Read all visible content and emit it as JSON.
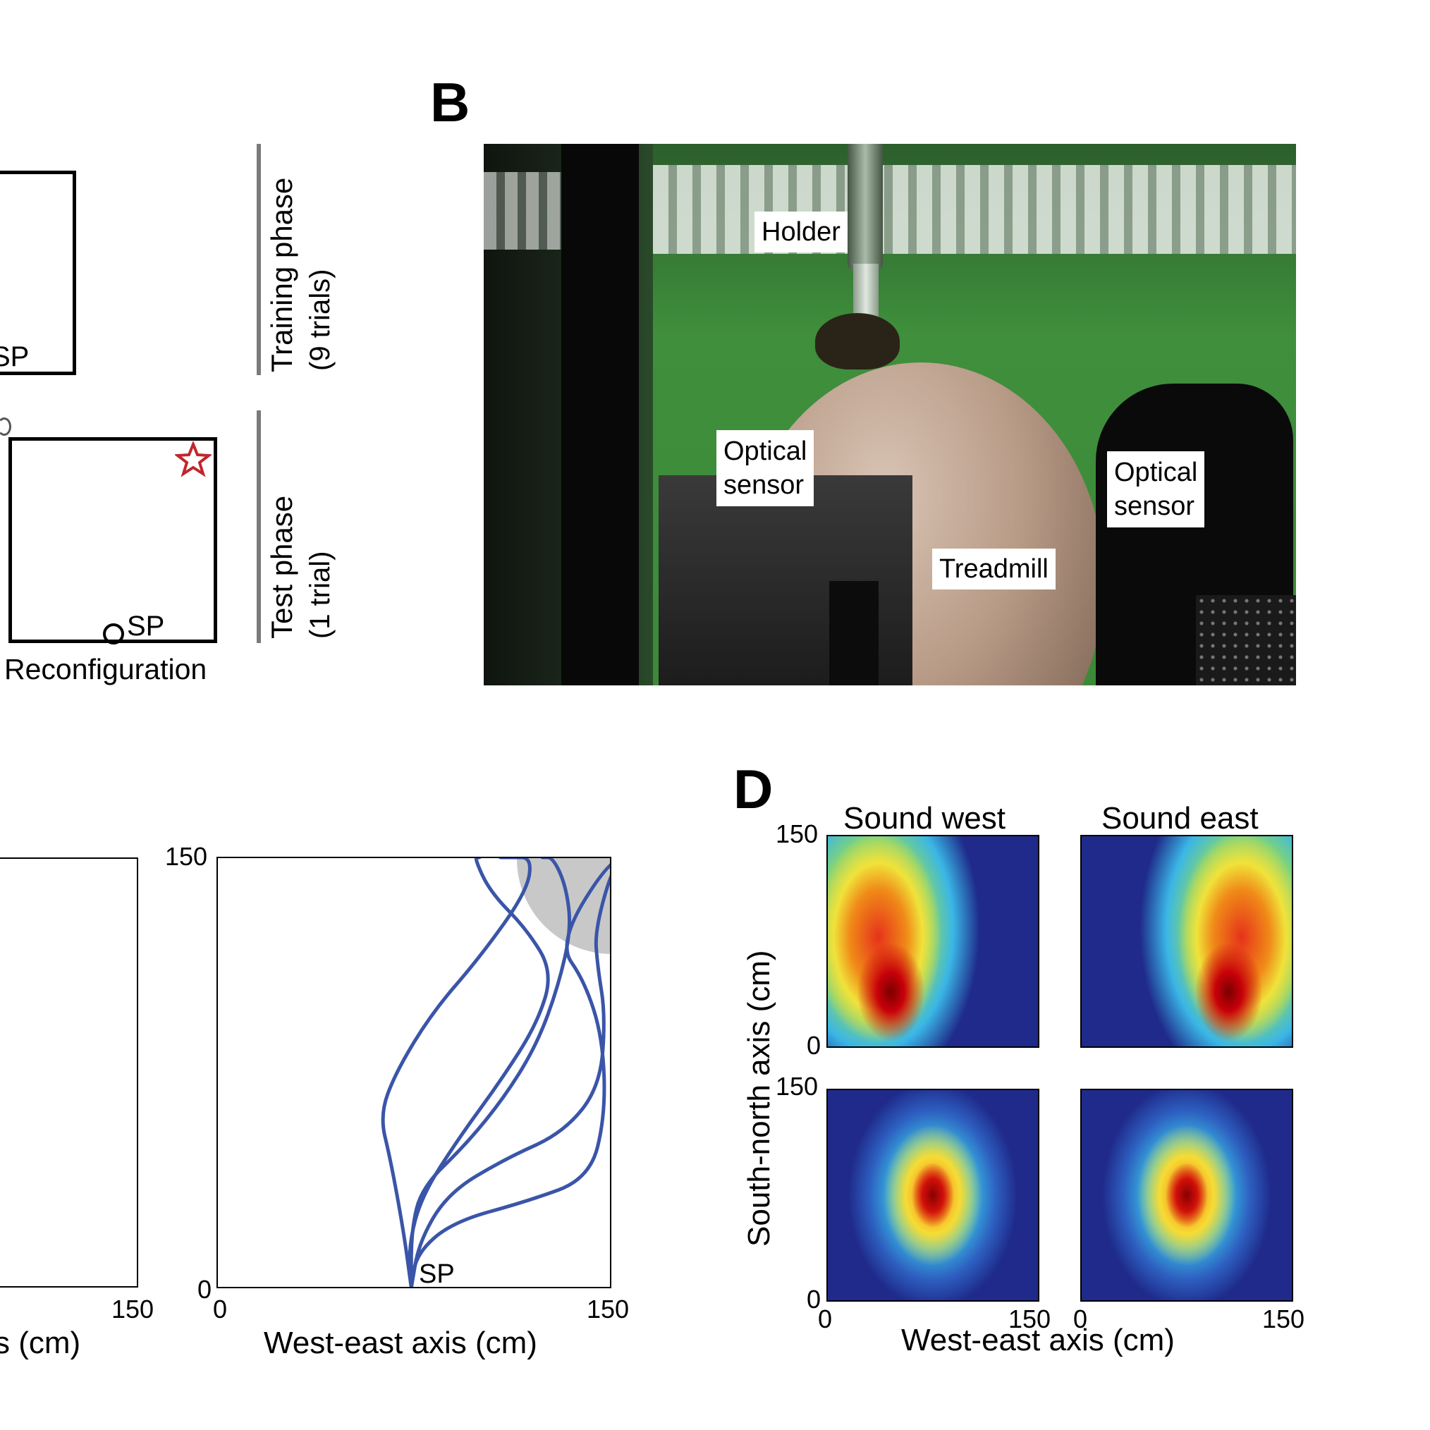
{
  "panelA": {
    "sp_top": "SP",
    "sp_bottom": "SP",
    "reconfiguration": "Reconfiguration",
    "training_phase": "Training phase",
    "training_trials": "(9 trials)",
    "test_phase": "Test phase",
    "test_trials": "(1 trial)"
  },
  "panelB": {
    "letter": "B",
    "holder": "Holder",
    "optical_sensor_left_1": "Optical",
    "optical_sensor_left_2": "sensor",
    "optical_sensor_right_1": "Optical",
    "optical_sensor_right_2": "sensor",
    "treadmill": "Treadmill"
  },
  "panelC": {
    "left_xlabel_fragment": "s (cm)",
    "left_tick_150": "150",
    "right_xlabel": "West-east axis (cm)",
    "tick_150_y": "150",
    "tick_0_y": "0",
    "tick_0_x": "0",
    "tick_150_x": "150",
    "sp": "SP"
  },
  "panelD": {
    "letter": "D",
    "title_west": "Sound west",
    "title_east": "Sound east",
    "ylabel": "South-north axis (cm)",
    "xlabel": "West-east axis (cm)",
    "tick_150_top": "150",
    "tick_0_top": "0",
    "tick_150_bottom": "150",
    "tick_0_bottom": "0",
    "tick_0_x_left": "0",
    "tick_150_x_left": "150",
    "tick_0_x_right": "0",
    "tick_150_x_right": "150"
  },
  "colors": {
    "trajectory": "#3a55a8",
    "goal_zone": "#c8c8c8",
    "star": "#c0262d",
    "heatmap_background": "#1f2a8a"
  },
  "chart_data": [
    {
      "type": "line",
      "description_axes": "trajectories in arena",
      "xlabel": "West-east axis (cm)",
      "ylabel": "",
      "xlim": [
        0,
        150
      ],
      "ylim": [
        0,
        150
      ],
      "start_point": [
        74,
        0
      ],
      "series": [
        {
          "x": [
            74,
            71,
            66,
            62,
            68,
            82,
            100,
            118,
            120,
            112,
            108
          ],
          "y": [
            0,
            20,
            45,
            60,
            75,
            96,
            115,
            138,
            150,
            150,
            150
          ]
        },
        {
          "x": [
            74,
            74,
            78,
            95,
            110,
            122,
            130,
            135,
            133,
            128,
            124
          ],
          "y": [
            0,
            20,
            35,
            50,
            67,
            85,
            105,
            125,
            140,
            150,
            150
          ]
        },
        {
          "x": [
            74,
            77,
            88,
            110,
            132,
            146,
            148,
            145,
            144,
            152,
            160
          ],
          "y": [
            0,
            16,
            33,
            45,
            54,
            70,
            95,
            112,
            125,
            150,
            150
          ]
        },
        {
          "x": [
            74,
            76,
            90,
            118,
            142,
            148,
            147,
            140,
            130,
            150,
            160
          ],
          "y": [
            0,
            12,
            23,
            30,
            38,
            60,
            87,
            107,
            120,
            150,
            150
          ]
        },
        {
          "x": [
            74,
            73,
            78,
            92,
            108,
            122,
            128,
            118,
            104,
            98,
            100
          ],
          "y": [
            0,
            15,
            32,
            52,
            72,
            92,
            110,
            125,
            138,
            150,
            150
          ]
        }
      ]
    },
    {
      "type": "heatmap",
      "panel": "Sound west (top)",
      "xlim": [
        0,
        150
      ],
      "ylim": [
        0,
        150
      ],
      "hotspot": [
        40,
        30
      ]
    },
    {
      "type": "heatmap",
      "panel": "Sound east (top)",
      "xlim": [
        0,
        150
      ],
      "ylim": [
        0,
        150
      ],
      "hotspot": [
        110,
        30
      ]
    },
    {
      "type": "heatmap",
      "panel": "bottom left",
      "xlim": [
        0,
        150
      ],
      "ylim": [
        0,
        150
      ],
      "hotspot": [
        75,
        75
      ]
    },
    {
      "type": "heatmap",
      "panel": "bottom right",
      "xlim": [
        0,
        150
      ],
      "ylim": [
        0,
        150
      ],
      "hotspot": [
        75,
        75
      ]
    }
  ]
}
